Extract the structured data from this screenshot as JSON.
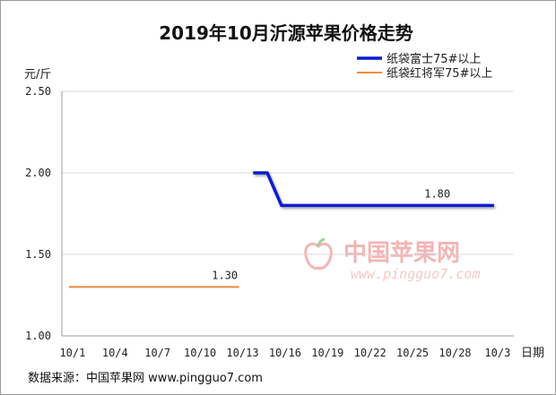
{
  "chart_data": {
    "type": "line",
    "title": "2019年10月沂源苹果价格走势",
    "ylabel": "元/斤",
    "xlabel": "日期",
    "ylim": [
      1.0,
      2.5
    ],
    "yticks": [
      "1.00",
      "1.50",
      "2.00",
      "2.50"
    ],
    "xticks": [
      "10/1",
      "10/4",
      "10/7",
      "10/10",
      "10/13",
      "10/16",
      "10/19",
      "10/22",
      "10/25",
      "10/28",
      "10/3"
    ],
    "grid": true,
    "legend_position": "top-right",
    "series": [
      {
        "name": "纸袋富士75#以上",
        "color": "#0a1ccc",
        "x": [
          14,
          15,
          16,
          17,
          18,
          19,
          20,
          21,
          22,
          23,
          24,
          25,
          26,
          27,
          28,
          29,
          30,
          31
        ],
        "y": [
          2.0,
          2.0,
          1.8,
          1.8,
          1.8,
          1.8,
          1.8,
          1.8,
          1.8,
          1.8,
          1.8,
          1.8,
          1.8,
          1.8,
          1.8,
          1.8,
          1.8,
          1.8
        ],
        "data_label": "1.80",
        "data_label_x": 27
      },
      {
        "name": "纸袋红将军75#以上",
        "color": "#f08a3c",
        "x": [
          1,
          2,
          3,
          4,
          5,
          6,
          7,
          8,
          9,
          10,
          11,
          12,
          13
        ],
        "y": [
          1.3,
          1.3,
          1.3,
          1.3,
          1.3,
          1.3,
          1.3,
          1.3,
          1.3,
          1.3,
          1.3,
          1.3,
          1.3
        ],
        "data_label": "1.30",
        "data_label_x": 12
      }
    ]
  },
  "watermark": {
    "cn": "中国苹果网",
    "en": "www.pingguo7.com"
  },
  "source": "数据来源：中国苹果网 www.pingguo7.com"
}
